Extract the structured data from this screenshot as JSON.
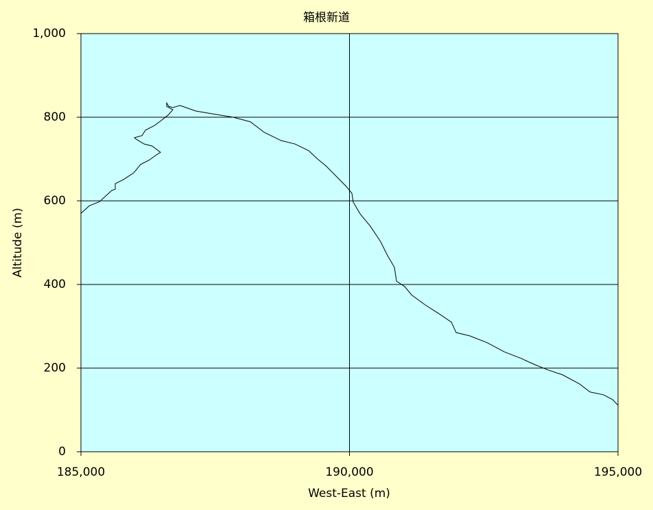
{
  "chart_data": {
    "type": "line",
    "title": "箱根新道",
    "x_label": "West-East (m)",
    "y_label": "Altitude (m)",
    "x": [
      185000,
      185153,
      185345,
      185473,
      185575,
      185639,
      185639,
      185792,
      185983,
      186111,
      186277,
      186405,
      186481,
      186328,
      186175,
      186022,
      185996,
      186137,
      186201,
      186367,
      186494,
      186622,
      186711,
      186596,
      186596,
      186635,
      186711,
      186839,
      186916,
      187133,
      187452,
      187835,
      188155,
      188410,
      188729,
      188985,
      189240,
      189406,
      189559,
      189751,
      189943,
      190045,
      190070,
      190198,
      190390,
      190581,
      190709,
      190837,
      190875,
      191028,
      191156,
      191411,
      191667,
      191897,
      191986,
      192241,
      192561,
      192880,
      193199,
      193455,
      193710,
      193966,
      194285,
      194477,
      194732,
      194898,
      195000
    ],
    "values": [
      570,
      588,
      598,
      613,
      625,
      628,
      641,
      651,
      667,
      687,
      698,
      710,
      716,
      731,
      736,
      748,
      751,
      756,
      769,
      780,
      792,
      805,
      818,
      826,
      834,
      826,
      823,
      828,
      825,
      815,
      808,
      800,
      789,
      764,
      744,
      736,
      720,
      700,
      684,
      659,
      634,
      618,
      597,
      569,
      539,
      502,
      469,
      441,
      408,
      395,
      375,
      351,
      330,
      310,
      285,
      277,
      261,
      239,
      223,
      208,
      195,
      184,
      162,
      143,
      136,
      125,
      111
    ],
    "color": "#000000",
    "background": "#ffffcc",
    "plot_background": "#ccffff",
    "xlim": [
      185000,
      195000
    ],
    "xticks": [
      {
        "value": 185000,
        "label": "185,000"
      },
      {
        "value": 190000,
        "label": "190,000"
      },
      {
        "value": 195000,
        "label": "195,000"
      }
    ],
    "ylim": [
      0,
      1000
    ],
    "yticks": [
      0,
      200,
      400,
      600,
      800,
      {
        "value": 1000,
        "label": "1,000"
      }
    ],
    "grid": true
  }
}
